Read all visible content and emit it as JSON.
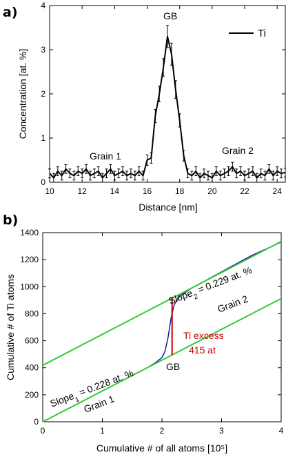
{
  "panels": {
    "a": {
      "label": "a)"
    },
    "b": {
      "label": "b)"
    }
  },
  "chart_data": [
    {
      "type": "line",
      "xlabel": "Distance [nm]",
      "ylabel": "Concentration [at. %]",
      "xlim": [
        10,
        24.5
      ],
      "ylim": [
        0,
        4
      ],
      "xticks": [
        "10",
        "12",
        "14",
        "16",
        "18",
        "20",
        "22",
        "24"
      ],
      "yticks": [
        "0",
        "1",
        "2",
        "3",
        "4"
      ],
      "legend": {
        "entries": [
          "Ti"
        ],
        "position": "top-right"
      },
      "annotations": [
        {
          "text": "GB",
          "x": 17.3,
          "y": 3.9
        },
        {
          "text": "Grain 1",
          "x": 13.4,
          "y": 0.65
        },
        {
          "text": "Grain 2",
          "x": 21.7,
          "y": 0.77
        }
      ],
      "series": [
        {
          "name": "Ti",
          "color": "#000000",
          "errorbars": true,
          "x": [
            10.0,
            10.25,
            10.5,
            10.75,
            11.0,
            11.25,
            11.5,
            11.75,
            12.0,
            12.25,
            12.5,
            12.75,
            13.0,
            13.25,
            13.5,
            13.75,
            14.0,
            14.25,
            14.5,
            14.75,
            15.0,
            15.25,
            15.5,
            15.75,
            16.0,
            16.25,
            16.5,
            16.75,
            17.0,
            17.25,
            17.5,
            17.75,
            18.0,
            18.25,
            18.5,
            18.75,
            19.0,
            19.25,
            19.5,
            19.75,
            20.0,
            20.25,
            20.5,
            20.75,
            21.0,
            21.25,
            21.5,
            21.75,
            22.0,
            22.25,
            22.5,
            22.75,
            23.0,
            23.25,
            23.5,
            23.75,
            24.0,
            24.25,
            24.5
          ],
          "y": [
            0.2,
            0.1,
            0.25,
            0.15,
            0.3,
            0.2,
            0.15,
            0.25,
            0.2,
            0.3,
            0.15,
            0.2,
            0.25,
            0.1,
            0.2,
            0.3,
            0.15,
            0.2,
            0.25,
            0.15,
            0.2,
            0.15,
            0.25,
            0.15,
            0.5,
            0.55,
            1.5,
            2.0,
            2.6,
            3.3,
            2.9,
            2.1,
            1.4,
            0.6,
            0.2,
            0.15,
            0.25,
            0.1,
            0.2,
            0.15,
            0.1,
            0.25,
            0.15,
            0.2,
            0.25,
            0.35,
            0.2,
            0.25,
            0.15,
            0.2,
            0.25,
            0.1,
            0.2,
            0.15,
            0.3,
            0.15,
            0.25,
            0.2,
            0.22
          ],
          "err": [
            0.1,
            0.1,
            0.1,
            0.1,
            0.1,
            0.1,
            0.1,
            0.1,
            0.1,
            0.1,
            0.1,
            0.1,
            0.1,
            0.1,
            0.1,
            0.1,
            0.1,
            0.1,
            0.1,
            0.1,
            0.1,
            0.1,
            0.1,
            0.1,
            0.12,
            0.12,
            0.15,
            0.18,
            0.2,
            0.25,
            0.25,
            0.2,
            0.15,
            0.12,
            0.1,
            0.1,
            0.1,
            0.1,
            0.1,
            0.1,
            0.1,
            0.1,
            0.1,
            0.1,
            0.1,
            0.1,
            0.1,
            0.1,
            0.1,
            0.1,
            0.1,
            0.1,
            0.1,
            0.1,
            0.1,
            0.1,
            0.1,
            0.1,
            0.1
          ]
        }
      ]
    },
    {
      "type": "line",
      "xlabel": "Cumulative # of all atoms [10⁵]",
      "ylabel": "Cumulative # of Ti atoms",
      "xlim": [
        0,
        4
      ],
      "ylim": [
        0,
        1400
      ],
      "xticks": [
        "0",
        "1",
        "2",
        "3",
        "4"
      ],
      "yticks": [
        "0",
        "200",
        "400",
        "600",
        "800",
        "1000",
        "1200",
        "1400"
      ],
      "annotations": [
        {
          "text": "Slope",
          "sub": "2",
          "suffix": " = 0.229 at. %"
        },
        {
          "text": "Grain 2"
        },
        {
          "text": "Ti excess",
          "color": "#c00000"
        },
        {
          "text": "415 at",
          "color": "#c00000"
        },
        {
          "text": "GB"
        },
        {
          "text": "Slope",
          "sub": "1",
          "suffix": " = 0.228 at. %"
        },
        {
          "text": "Grain 1"
        }
      ],
      "series": [
        {
          "color": "#1a1aa8",
          "x": [
            0,
            0.25,
            0.5,
            0.75,
            1.0,
            1.25,
            1.5,
            1.75,
            1.9,
            2.0,
            2.05,
            2.1,
            2.15,
            2.2,
            2.25,
            2.3,
            2.4,
            2.5,
            2.75,
            3.0,
            3.25,
            3.5,
            3.75,
            4.0
          ],
          "y": [
            0,
            57,
            114,
            171,
            228,
            285,
            342,
            399,
            440,
            475,
            520,
            620,
            760,
            860,
            900,
            930,
            960,
            990,
            1050,
            1110,
            1170,
            1230,
            1280,
            1330
          ]
        },
        {
          "color": "#33cc33",
          "line": "fit",
          "x": [
            0,
            4
          ],
          "y": [
            0,
            912
          ]
        },
        {
          "color": "#33cc33",
          "line": "fit",
          "x": [
            0,
            4
          ],
          "y": [
            418,
            1334
          ]
        },
        {
          "color": "#c00000",
          "line": "marker",
          "x": [
            2.17,
            2.17
          ],
          "y": [
            495,
            915
          ]
        }
      ]
    }
  ]
}
